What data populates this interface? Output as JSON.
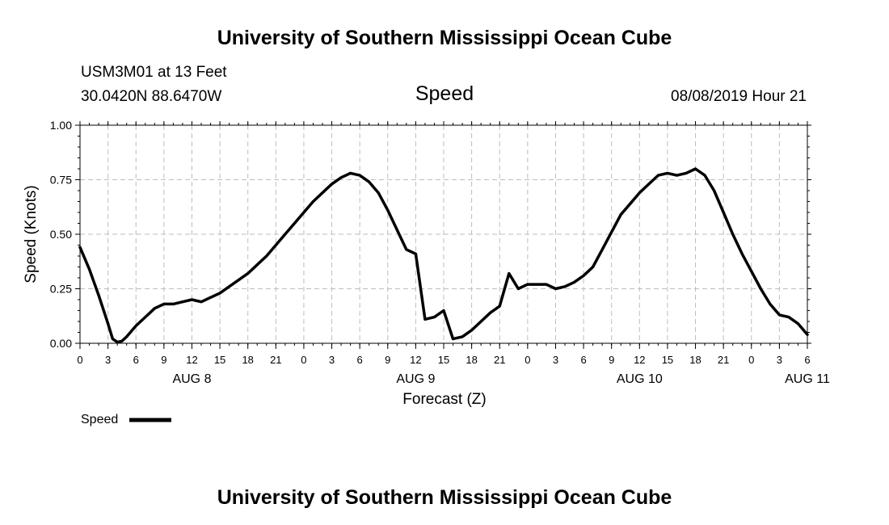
{
  "header": {
    "title_top": "University of Southern Mississippi Ocean Cube",
    "station": "USM3M01 at 13 Feet",
    "location": "30.0420N 88.6470W",
    "variable": "Speed",
    "datetime": "08/08/2019 Hour 21"
  },
  "footer": {
    "title_bottom": "University of Southern Mississippi Ocean Cube"
  },
  "legend": {
    "label": "Speed"
  },
  "chart_data": {
    "type": "line",
    "title": "Speed",
    "xlabel": "Forecast (Z)",
    "ylabel": "Speed (Knots)",
    "ylim": [
      0,
      1
    ],
    "xlim_hours": [
      0,
      78
    ],
    "grid": true,
    "legend_position": "bottom-left",
    "y_ticks": [
      "0.00",
      "0.25",
      "0.50",
      "0.75",
      "1.00"
    ],
    "y_tick_values": [
      0,
      0.25,
      0.5,
      0.75,
      1.0
    ],
    "x_tick_labels": [
      "0",
      "3",
      "6",
      "9",
      "12",
      "15",
      "18",
      "21",
      "0",
      "3",
      "6",
      "9",
      "12",
      "15",
      "18",
      "21",
      "0",
      "3",
      "6",
      "9",
      "12",
      "15",
      "18",
      "21",
      "0",
      "3",
      "6"
    ],
    "x_day_labels": [
      {
        "label": "AUG 8",
        "hour": 12
      },
      {
        "label": "AUG 9",
        "hour": 36
      },
      {
        "label": "AUG 10",
        "hour": 60
      },
      {
        "label": "AUG 11",
        "hour": 78
      }
    ],
    "series": [
      {
        "name": "Speed",
        "color": "#000000",
        "x": [
          0,
          1,
          2,
          3,
          3.5,
          4,
          4.5,
          5,
          6,
          7,
          8,
          9,
          10,
          11,
          12,
          13,
          14,
          15,
          16,
          17,
          18,
          19,
          20,
          21,
          22,
          23,
          24,
          25,
          26,
          27,
          28,
          29,
          30,
          31,
          32,
          33,
          34,
          35,
          36,
          37,
          38,
          39,
          40,
          41,
          42,
          43,
          44,
          45,
          46,
          47,
          48,
          49,
          50,
          51,
          52,
          53,
          54,
          55,
          56,
          57,
          58,
          59,
          60,
          61,
          62,
          63,
          64,
          65,
          66,
          67,
          68,
          69,
          70,
          71,
          72,
          73,
          74,
          75,
          76,
          77,
          78
        ],
        "y": [
          0.44,
          0.34,
          0.22,
          0.09,
          0.02,
          0.005,
          0.01,
          0.03,
          0.08,
          0.12,
          0.16,
          0.18,
          0.18,
          0.19,
          0.2,
          0.19,
          0.21,
          0.23,
          0.26,
          0.29,
          0.32,
          0.36,
          0.4,
          0.45,
          0.5,
          0.55,
          0.6,
          0.65,
          0.69,
          0.73,
          0.76,
          0.78,
          0.77,
          0.74,
          0.69,
          0.61,
          0.52,
          0.43,
          0.41,
          0.11,
          0.12,
          0.15,
          0.02,
          0.03,
          0.06,
          0.1,
          0.14,
          0.17,
          0.32,
          0.25,
          0.27,
          0.27,
          0.27,
          0.25,
          0.26,
          0.28,
          0.31,
          0.35,
          0.43,
          0.51,
          0.59,
          0.64,
          0.69,
          0.73,
          0.77,
          0.78,
          0.77,
          0.78,
          0.8,
          0.77,
          0.7,
          0.6,
          0.5,
          0.41,
          0.33,
          0.25,
          0.18,
          0.13,
          0.12,
          0.09,
          0.04
        ]
      }
    ]
  }
}
